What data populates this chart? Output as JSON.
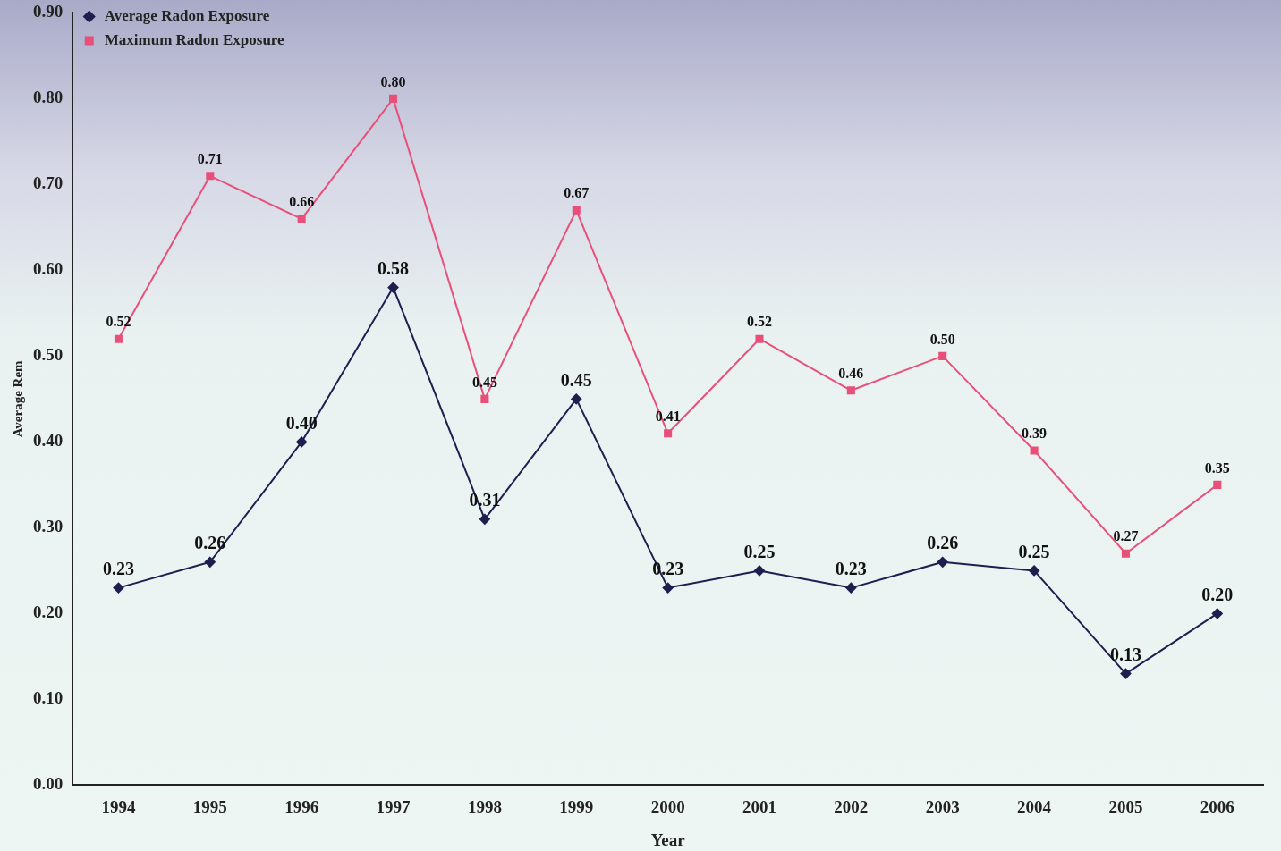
{
  "chart_data": {
    "type": "line",
    "xlabel": "Year",
    "ylabel": "Average Rem",
    "categories": [
      "1994",
      "1995",
      "1996",
      "1997",
      "1998",
      "1999",
      "2000",
      "2001",
      "2002",
      "2003",
      "2004",
      "2005",
      "2006"
    ],
    "series": [
      {
        "name": "Average Radon Exposure",
        "color": "#1f1f4f",
        "marker": "diamond",
        "values": [
          0.23,
          0.26,
          0.4,
          0.58,
          0.31,
          0.45,
          0.23,
          0.25,
          0.23,
          0.26,
          0.25,
          0.13,
          0.2
        ],
        "value_labels": [
          "0.23",
          "0.26",
          "0.40",
          "0.58",
          "0.31",
          "0.45",
          "0.23",
          "0.25",
          "0.23",
          "0.26",
          "0.25",
          "0.13",
          "0.20"
        ]
      },
      {
        "name": "Maximum Radon Exposure",
        "color": "#e8507a",
        "marker": "square",
        "values": [
          0.52,
          0.71,
          0.66,
          0.8,
          0.45,
          0.67,
          0.41,
          0.52,
          0.46,
          0.5,
          0.39,
          0.27,
          0.35
        ],
        "value_labels": [
          "0.52",
          "0.71",
          "0.66",
          "0.80",
          "0.45",
          "0.67",
          "0.41",
          "0.52",
          "0.46",
          "0.50",
          "0.39",
          "0.27",
          "0.35"
        ]
      }
    ],
    "ylim": [
      0,
      0.9
    ],
    "yticks": [
      {
        "value": 0,
        "label": "0.00"
      },
      {
        "value": 0.1,
        "label": "0.10"
      },
      {
        "value": 0.2,
        "label": "0.20"
      },
      {
        "value": 0.3,
        "label": "0.30"
      },
      {
        "value": 0.4,
        "label": "0.40"
      },
      {
        "value": 0.5,
        "label": "0.50"
      },
      {
        "value": 0.6,
        "label": "0.60"
      },
      {
        "value": 0.7,
        "label": "0.70"
      },
      {
        "value": 0.8,
        "label": "0.80"
      },
      {
        "value": 0.9,
        "label": "0.90"
      }
    ],
    "grid": false,
    "legend": "top left",
    "line_style": "solid"
  }
}
